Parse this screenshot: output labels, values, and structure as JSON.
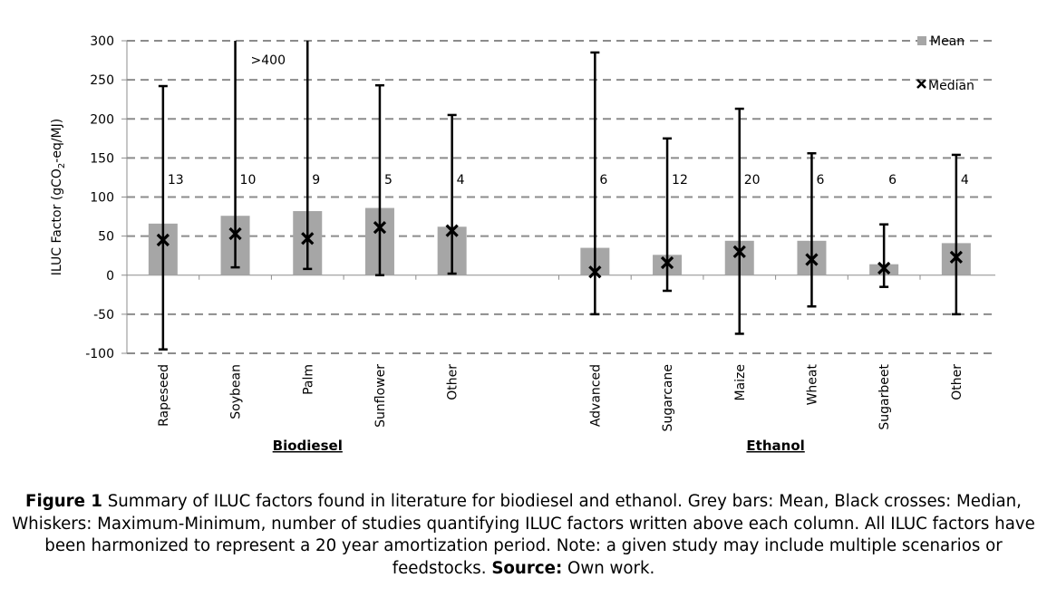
{
  "chart_data": {
    "type": "bar",
    "ylabel_parts": [
      "ILUC Factor (gCO",
      "2",
      "-eq/MJ)"
    ],
    "ylim": [
      -100,
      300
    ],
    "yticks": [
      300,
      250,
      200,
      150,
      100,
      50,
      0,
      -50,
      -100
    ],
    "grid": true,
    "legend_position": "top-right",
    "legend": {
      "mean": "Mean",
      "median": "Median"
    },
    "bar_color": "#a6a6a6",
    "groups": [
      {
        "name": "Biodiesel",
        "categories": [
          "Rapeseed",
          "Soybean",
          "Palm",
          "Sunflower",
          "Other"
        ],
        "mean": [
          66,
          76,
          82,
          86,
          62
        ],
        "median": [
          45,
          53,
          47,
          61,
          57
        ],
        "max": [
          242,
          300,
          300,
          243,
          205
        ],
        "min": [
          -95,
          10,
          8,
          0,
          2
        ],
        "studies": [
          "13",
          "10",
          "9",
          "5",
          "4"
        ]
      },
      {
        "name": "Ethanol",
        "categories": [
          "Advanced",
          "Sugarcane",
          "Maize",
          "Wheat",
          "Sugarbeet",
          "Other"
        ],
        "mean": [
          35,
          26,
          44,
          44,
          14,
          41
        ],
        "median": [
          4,
          16,
          30,
          20,
          9,
          23
        ],
        "max": [
          285,
          175,
          213,
          156,
          65,
          154
        ],
        "min": [
          -50,
          -20,
          -75,
          -40,
          -15,
          -50
        ],
        "studies": [
          "6",
          "12",
          "20",
          "6",
          "6",
          "4"
        ]
      }
    ],
    "annotations": [
      {
        "text": ">400",
        "category": "Soybean"
      }
    ]
  },
  "caption": {
    "figure_label": "Figure 1",
    "text": " Summary of ILUC factors found in literature for biodiesel and ethanol. Grey bars: Mean, Black crosses: Median, Whiskers: Maximum-Minimum, number of studies quantifying ILUC factors written above each column. All ILUC factors have been harmonized to represent a 20 year amortization period. Note: a given study may include multiple scenarios or feedstocks. ",
    "source_label": "Source:",
    "source_text": " Own work."
  }
}
